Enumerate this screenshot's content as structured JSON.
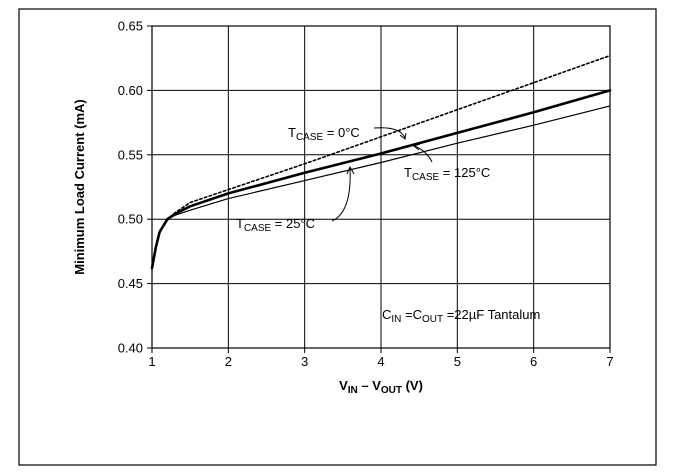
{
  "chart_data": {
    "type": "line",
    "x_axis": {
      "label_main": "V",
      "label_sub_1": "IN",
      "label_mid": " – V",
      "label_sub_2": "OUT",
      "label_unit": " (V)",
      "range": [
        1,
        7
      ],
      "ticks": [
        "1",
        "2",
        "3",
        "4",
        "5",
        "6",
        "7"
      ]
    },
    "y_axis": {
      "label": "Minimum Load Current (mA)",
      "range": [
        0.4,
        0.65
      ],
      "ticks": [
        "0.40",
        "0.45",
        "0.50",
        "0.55",
        "0.60",
        "0.65"
      ]
    },
    "grid": true,
    "series": [
      {
        "name": "TCASE = 0°C",
        "style": "dotted",
        "points": [
          [
            1.0,
            0.462
          ],
          [
            1.05,
            0.478
          ],
          [
            1.1,
            0.49
          ],
          [
            1.2,
            0.499
          ],
          [
            1.3,
            0.505
          ],
          [
            1.5,
            0.513
          ],
          [
            2.0,
            0.523
          ],
          [
            3.0,
            0.543
          ],
          [
            4.0,
            0.564
          ],
          [
            5.0,
            0.585
          ],
          [
            6.0,
            0.606
          ],
          [
            7.0,
            0.627
          ]
        ]
      },
      {
        "name": "TCASE = 25°C",
        "style": "thick",
        "points": [
          [
            1.0,
            0.462
          ],
          [
            1.05,
            0.478
          ],
          [
            1.1,
            0.49
          ],
          [
            1.2,
            0.5
          ],
          [
            1.3,
            0.504
          ],
          [
            1.5,
            0.51
          ],
          [
            2.0,
            0.52
          ],
          [
            3.0,
            0.536
          ],
          [
            4.0,
            0.551
          ],
          [
            5.0,
            0.567
          ],
          [
            6.0,
            0.583
          ],
          [
            7.0,
            0.6
          ]
        ]
      },
      {
        "name": "TCASE = 125°C",
        "style": "thin",
        "points": [
          [
            1.0,
            0.462
          ],
          [
            1.05,
            0.478
          ],
          [
            1.1,
            0.49
          ],
          [
            1.2,
            0.5
          ],
          [
            1.3,
            0.503
          ],
          [
            1.5,
            0.507
          ],
          [
            2.0,
            0.516
          ],
          [
            3.0,
            0.53
          ],
          [
            4.0,
            0.544
          ],
          [
            5.0,
            0.559
          ],
          [
            6.0,
            0.573
          ],
          [
            7.0,
            0.588
          ]
        ]
      }
    ],
    "annotations": [
      {
        "id": "t0",
        "main": "T",
        "sub": "CASE",
        "rest": " = 0°C"
      },
      {
        "id": "t125",
        "main": "T",
        "sub": "CASE",
        "rest": " = 125°C"
      },
      {
        "id": "t25",
        "main": "T",
        "sub": "CASE",
        "rest": " = 25°C"
      },
      {
        "id": "cap",
        "c1": "C",
        "c1sub": "IN",
        "mid": " =C",
        "c2sub": "OUT",
        "rest": " =22µF Tantalum"
      }
    ]
  }
}
